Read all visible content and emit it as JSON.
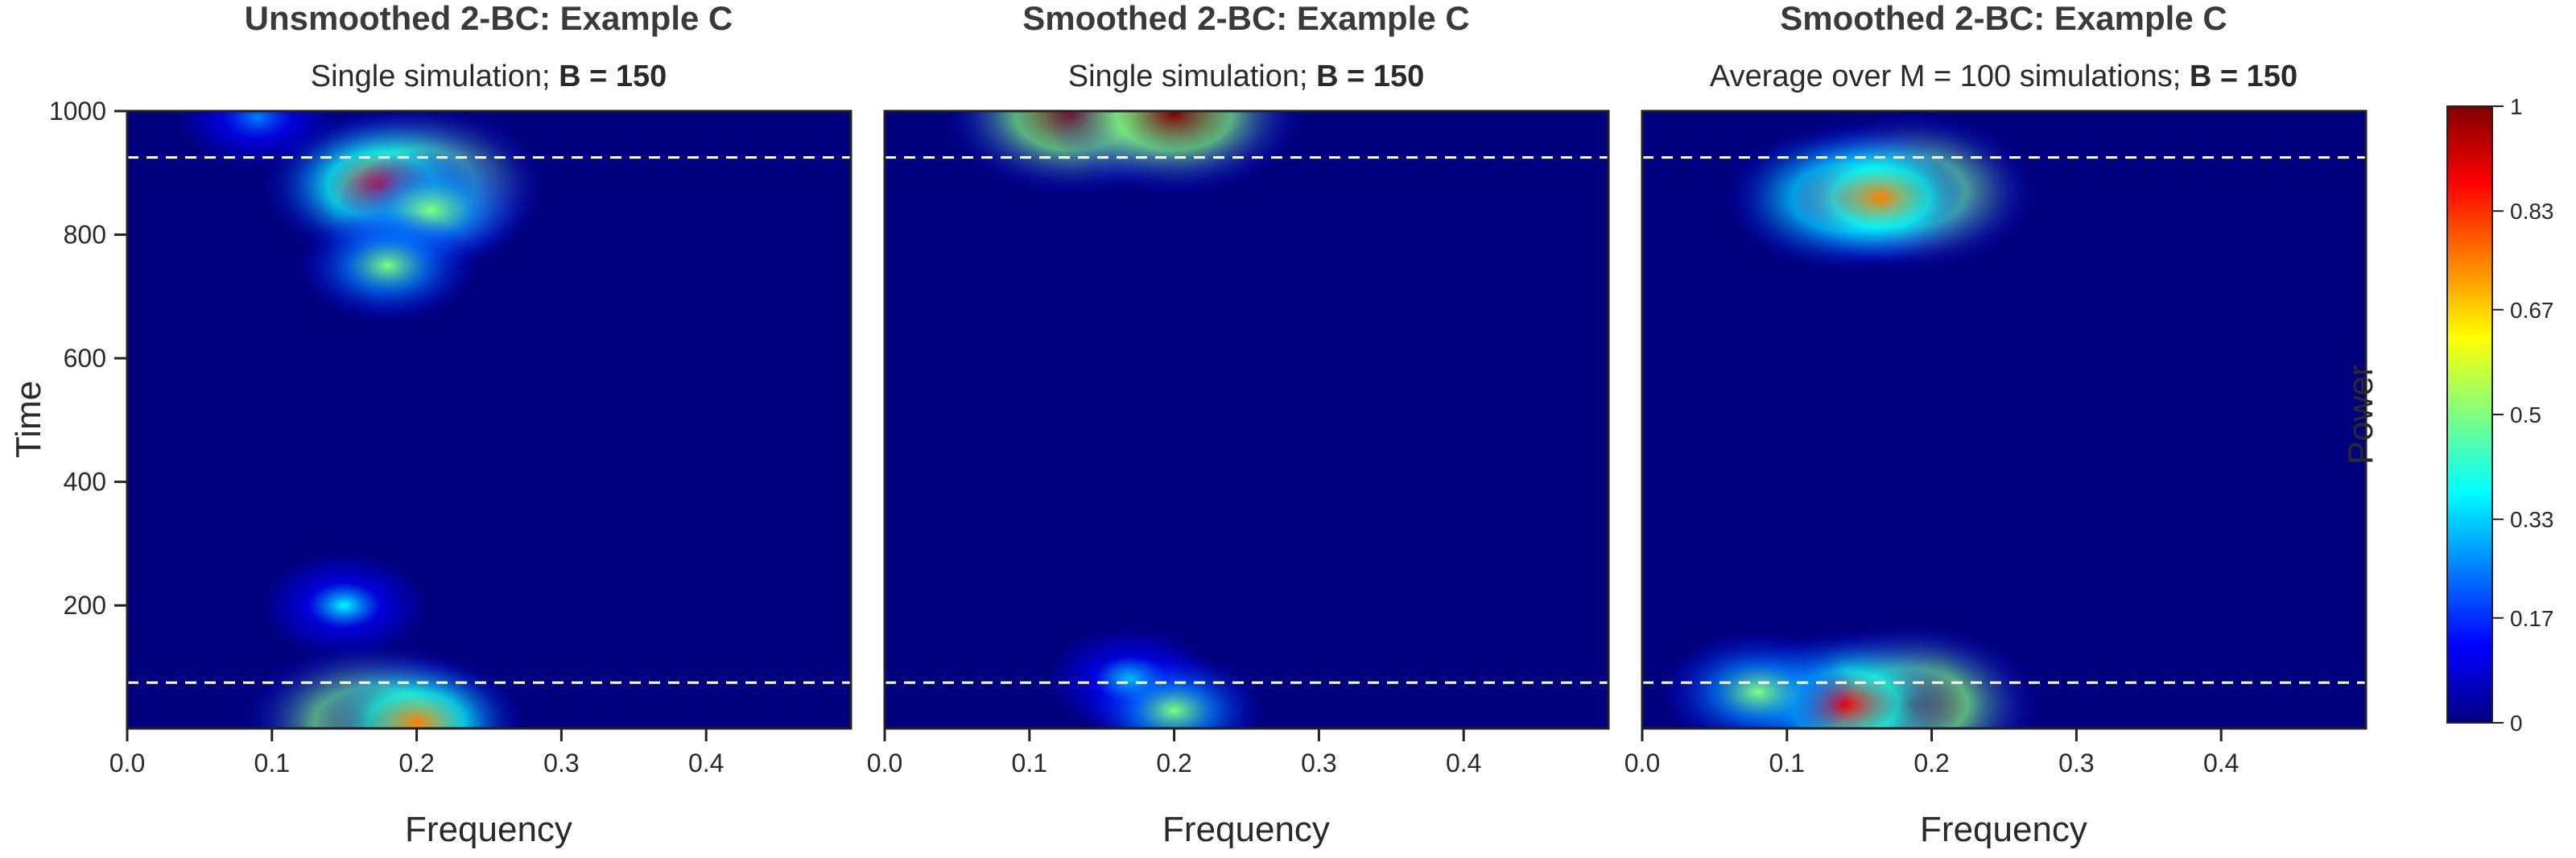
{
  "chart_data": [
    {
      "type": "heatmap",
      "title": "Unsmoothed 2-BC: Example C",
      "subtitle_prefix": "Single simulation; ",
      "subtitle_bold": "B = 150",
      "xlabel": "Frequency",
      "ylabel": "Time",
      "xlim": [
        0,
        0.5
      ],
      "ylim": [
        1,
        1000
      ],
      "xticks": [
        "0.0",
        "0.1",
        "0.2",
        "0.3",
        "0.4"
      ],
      "yticks": [
        "200",
        "400",
        "600",
        "800",
        "1000"
      ],
      "reference_lines": [
        {
          "time": 75,
          "style": "dashed",
          "color": "#ffffff"
        },
        {
          "time": 925,
          "style": "dashed",
          "color": "#ffffff"
        }
      ],
      "hotspots": [
        {
          "freq": 0.2,
          "time": 880,
          "power": 1.0
        },
        {
          "freq": 0.175,
          "time": 880,
          "power": 0.85
        },
        {
          "freq": 0.21,
          "time": 840,
          "power": 0.55
        },
        {
          "freq": 0.18,
          "time": 750,
          "power": 0.45
        },
        {
          "freq": 0.17,
          "time": 10,
          "power": 1.0
        },
        {
          "freq": 0.2,
          "time": 10,
          "power": 0.7
        },
        {
          "freq": 0.15,
          "time": 200,
          "power": 0.35
        },
        {
          "freq": 0.09,
          "time": 990,
          "power": 0.3
        }
      ]
    },
    {
      "type": "heatmap",
      "title": "Smoothed 2-BC: Example C",
      "subtitle_prefix": "Single simulation; ",
      "subtitle_bold": "B = 150",
      "xlabel": "Frequency",
      "xlim": [
        0,
        0.5
      ],
      "ylim": [
        1,
        1000
      ],
      "xticks": [
        "0.0",
        "0.1",
        "0.2",
        "0.3",
        "0.4"
      ],
      "reference_lines": [
        {
          "time": 75,
          "style": "dashed",
          "color": "#ffffff"
        },
        {
          "time": 925,
          "style": "dashed",
          "color": "#ffffff"
        }
      ],
      "hotspots": [
        {
          "freq": 0.13,
          "time": 995,
          "power": 1.0
        },
        {
          "freq": 0.2,
          "time": 995,
          "power": 1.0
        },
        {
          "freq": 0.17,
          "time": 80,
          "power": 0.35
        },
        {
          "freq": 0.2,
          "time": 30,
          "power": 0.45
        }
      ]
    },
    {
      "type": "heatmap",
      "title": "Smoothed 2-BC: Example C",
      "subtitle_prefix": "Average over M = 100 simulations; ",
      "subtitle_bold": "B = 150",
      "xlabel": "Frequency",
      "xlim": [
        0,
        0.5
      ],
      "ylim": [
        1,
        1000
      ],
      "xticks": [
        "0.0",
        "0.1",
        "0.2",
        "0.3",
        "0.4"
      ],
      "reference_lines": [
        {
          "time": 75,
          "style": "dashed",
          "color": "#ffffff"
        },
        {
          "time": 925,
          "style": "dashed",
          "color": "#ffffff"
        }
      ],
      "hotspots": [
        {
          "freq": 0.185,
          "time": 870,
          "power": 0.95
        },
        {
          "freq": 0.14,
          "time": 860,
          "power": 0.85
        },
        {
          "freq": 0.165,
          "time": 860,
          "power": 0.7
        },
        {
          "freq": 0.185,
          "time": 40,
          "power": 1.0
        },
        {
          "freq": 0.14,
          "time": 40,
          "power": 0.85
        },
        {
          "freq": 0.08,
          "time": 60,
          "power": 0.55
        }
      ]
    }
  ],
  "colorbar": {
    "label": "Power",
    "range": [
      0,
      1
    ],
    "ticks": [
      "0",
      "0.17",
      "0.33",
      "0.5",
      "0.67",
      "0.83",
      "1"
    ],
    "colormap": [
      "#00007f",
      "#0000ff",
      "#007fff",
      "#00ffff",
      "#7fff7f",
      "#ffff00",
      "#ff7f00",
      "#ff0000",
      "#7f0000"
    ]
  }
}
